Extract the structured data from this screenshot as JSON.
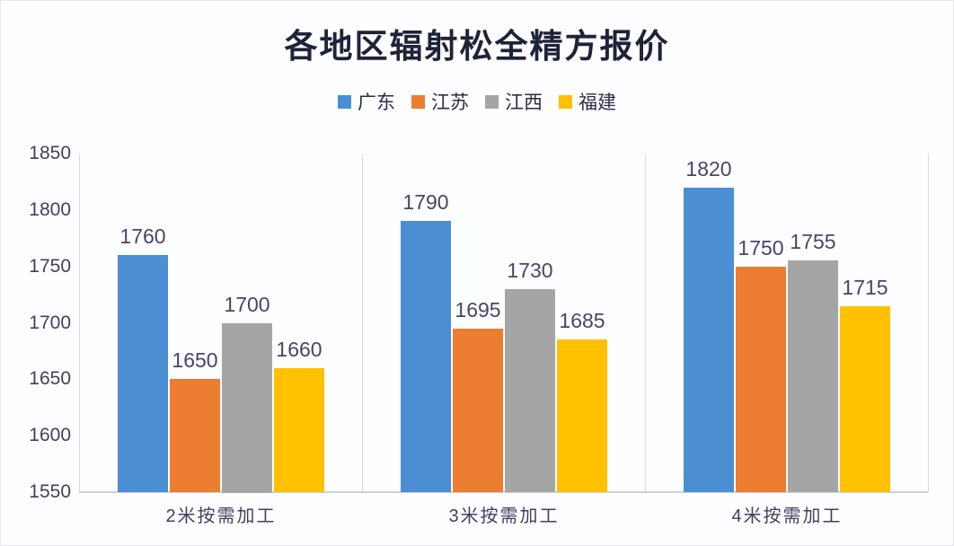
{
  "title": "各地区辐射松全精方报价",
  "colors": {
    "series_blue": "#4b8fd2",
    "series_orange": "#ed7d31",
    "series_gray": "#a5a5a5",
    "series_yellow": "#ffc000",
    "axis_line": "#d2d6de",
    "label_text": "#4a4466",
    "title_text": "#1f2338"
  },
  "chart_data": {
    "type": "bar",
    "title": "各地区辐射松全精方报价",
    "categories": [
      "2米按需加工",
      "3米按需加工",
      "4米按需加工"
    ],
    "series": [
      {
        "name": "广东",
        "color": "#4b8fd2",
        "values": [
          1760,
          1790,
          1820
        ]
      },
      {
        "name": "江苏",
        "color": "#ed7d31",
        "values": [
          1650,
          1695,
          1750
        ]
      },
      {
        "name": "江西",
        "color": "#a5a5a5",
        "values": [
          1700,
          1730,
          1755
        ]
      },
      {
        "name": "福建",
        "color": "#ffc000",
        "values": [
          1660,
          1685,
          1715
        ]
      }
    ],
    "ylim": [
      1550,
      1850
    ],
    "yticks": [
      1550,
      1600,
      1650,
      1700,
      1750,
      1800,
      1850
    ],
    "xlabel": "",
    "ylabel": "",
    "grid": "vertical category separators only",
    "legend_position": "top",
    "data_labels": true
  }
}
